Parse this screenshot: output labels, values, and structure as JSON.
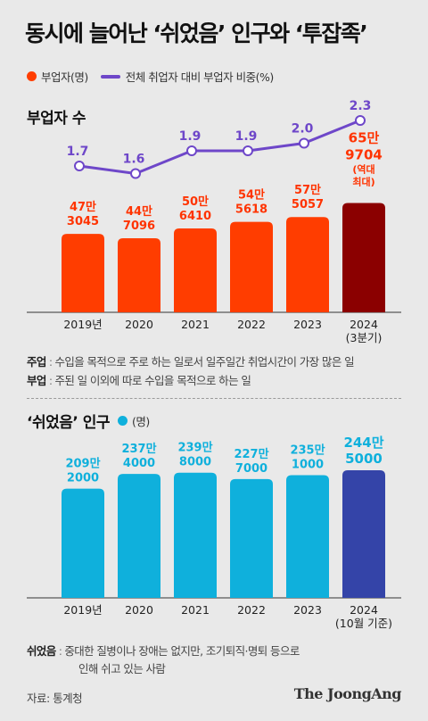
{
  "title": "동시에 늘어난 ‘쉬었음’ 인구와 ‘투잡족’",
  "legend": {
    "bar_label": "부업자(명)",
    "line_label": "전체 취업자 대비 부업자 비중(%)"
  },
  "colors": {
    "side_job_bar": "#ff3d00",
    "side_job_bar_highlight": "#8b0000",
    "share_line": "#6e47c9",
    "rest_bar": "#0fb0dc",
    "rest_bar_highlight": "#3444a8",
    "side_job_label": "#ff3300",
    "rest_label": "#0fb0dc"
  },
  "chart_data": [
    {
      "type": "bar",
      "title": "부업자 수",
      "categories": [
        "2019년",
        "2020",
        "2021",
        "2022",
        "2023",
        "2024"
      ],
      "category_sublabels": [
        "",
        "",
        "",
        "",
        "",
        "(3분기)"
      ],
      "series": [
        {
          "name": "부업자(명)",
          "values": [
            473045,
            447096,
            506410,
            545618,
            575057,
            659704
          ],
          "value_labels": [
            [
              "47만",
              "3045"
            ],
            [
              "44만",
              "7096"
            ],
            [
              "50만",
              "6410"
            ],
            [
              "54만",
              "5618"
            ],
            [
              "57만",
              "5057"
            ],
            [
              "65만",
              "9704"
            ]
          ],
          "highlight_index": 5,
          "highlight_note": [
            "(역대",
            "최대)"
          ]
        },
        {
          "name": "전체 취업자 대비 부업자 비중(%)",
          "type": "line",
          "values": [
            1.7,
            1.6,
            1.9,
            1.9,
            2.0,
            2.3
          ],
          "value_labels": [
            "1.7",
            "1.6",
            "1.9",
            "1.9",
            "2.0",
            "2.3"
          ]
        }
      ],
      "ylim": [
        0,
        700000
      ]
    },
    {
      "type": "bar",
      "title": "‘쉬었음’ 인구",
      "unit": "(명)",
      "categories": [
        "2019년",
        "2020",
        "2021",
        "2022",
        "2023",
        "2024"
      ],
      "category_sublabels": [
        "",
        "",
        "",
        "",
        "",
        "(10월 기준)"
      ],
      "series": [
        {
          "name": "‘쉬었음’ 인구",
          "values": [
            2092000,
            2374000,
            2398000,
            2277000,
            2351000,
            2445000
          ],
          "value_labels": [
            [
              "209만",
              "2000"
            ],
            [
              "237만",
              "4000"
            ],
            [
              "239만",
              "8000"
            ],
            [
              "227만",
              "7000"
            ],
            [
              "235만",
              "1000"
            ],
            [
              "244만",
              "5000"
            ]
          ],
          "highlight_index": 5
        }
      ]
    }
  ],
  "notes_top": [
    {
      "term": "주업",
      "text": "수입을 목적으로 주로 하는 일로서 일주일간 취업시간이 가장 많은 일"
    },
    {
      "term": "부업",
      "text": "주된 일 이외에 따로 수입을 목적으로 하는 일"
    }
  ],
  "notes_bottom": {
    "term": "쉬었음",
    "line1": "중대한 질병이나 장애는 없지만, 조기퇴직·명퇴 등으로",
    "line2": "인해 쉬고 있는 사람"
  },
  "source": "자료: 통계청",
  "logo": "The JoongAng"
}
